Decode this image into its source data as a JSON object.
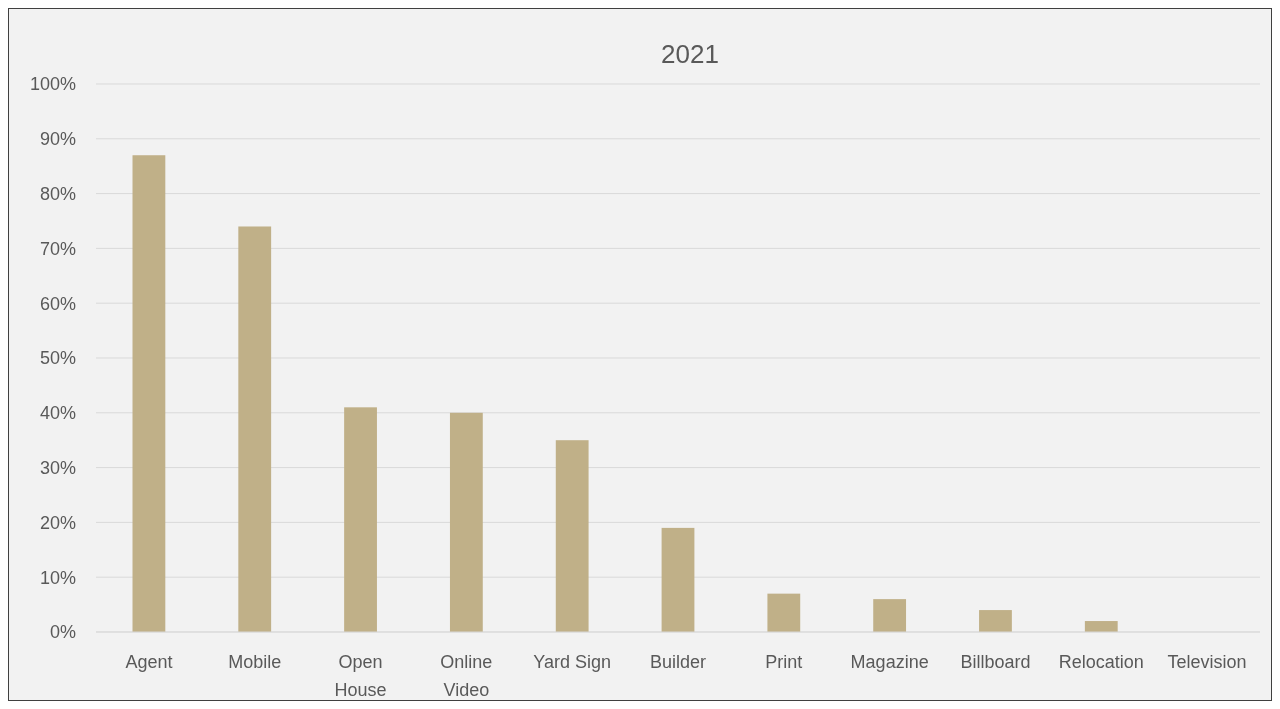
{
  "chart_data": {
    "type": "bar",
    "title": "2021",
    "categories": [
      "Agent",
      "Mobile",
      "Open House",
      "Online Video",
      "Yard Sign",
      "Builder",
      "Print",
      "Magazine",
      "Billboard",
      "Relocation",
      "Television"
    ],
    "values": [
      87,
      74,
      41,
      40,
      35,
      19,
      7,
      6,
      4,
      2,
      0
    ],
    "color": "#c0b088",
    "ylim": [
      0,
      100
    ],
    "yticks": [
      {
        "value": 0,
        "label": "0%"
      },
      {
        "value": 10,
        "label": "10%"
      },
      {
        "value": 20,
        "label": "20%"
      },
      {
        "value": 30,
        "label": "30%"
      },
      {
        "value": 40,
        "label": "40%"
      },
      {
        "value": 50,
        "label": "50%"
      },
      {
        "value": 60,
        "label": "60%"
      },
      {
        "value": 70,
        "label": "70%"
      },
      {
        "value": 80,
        "label": "80%"
      },
      {
        "value": 90,
        "label": "90%"
      },
      {
        "value": 100,
        "label": "100%"
      }
    ],
    "grid": true
  }
}
